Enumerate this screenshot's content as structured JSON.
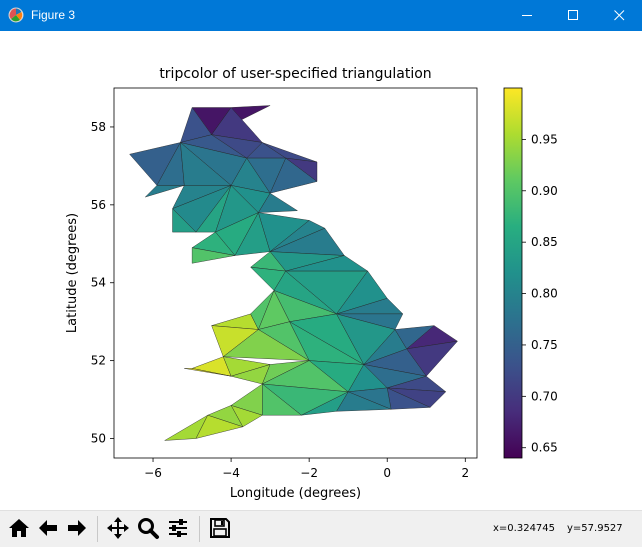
{
  "window": {
    "title": "Figure 3"
  },
  "toolbar": {
    "buttons": [
      "home-icon",
      "back-arrow-icon",
      "forward-arrow-icon",
      "pan-icon",
      "zoom-icon",
      "configure-subplots-icon",
      "save-icon"
    ],
    "coords": {
      "x": "x=0.324745",
      "y": "y=57.9527"
    }
  },
  "chart_data": {
    "type": "heatmap",
    "title": "tripcolor of user-specified triangulation",
    "xlabel": "Longitude (degrees)",
    "ylabel": "Latitude (degrees)",
    "xlim": [
      -7,
      2.3
    ],
    "ylim": [
      49.5,
      59
    ],
    "xticks": [
      -6,
      -4,
      -2,
      0,
      2
    ],
    "yticks": [
      50,
      52,
      54,
      56,
      58
    ],
    "colormap": "viridis",
    "colorbar": {
      "vmin": 0.64,
      "vmax": 1.0,
      "ticks": [
        0.65,
        0.7,
        0.75,
        0.8,
        0.85,
        0.9,
        0.95
      ]
    },
    "nodes": [
      [
        -5.0,
        58.5
      ],
      [
        -4.0,
        58.5
      ],
      [
        -3.0,
        58.55
      ],
      [
        -5.3,
        57.6
      ],
      [
        -4.5,
        57.8
      ],
      [
        -3.2,
        57.6
      ],
      [
        -3.6,
        57.2
      ],
      [
        -2.6,
        57.2
      ],
      [
        -1.8,
        57.1
      ],
      [
        -1.8,
        56.6
      ],
      [
        -6.6,
        57.3
      ],
      [
        -5.9,
        56.5
      ],
      [
        -6.2,
        56.2
      ],
      [
        -5.2,
        56.5
      ],
      [
        -4.0,
        56.5
      ],
      [
        -3.0,
        56.3
      ],
      [
        -2.3,
        55.85
      ],
      [
        -5.5,
        55.9
      ],
      [
        -5.5,
        55.3
      ],
      [
        -4.9,
        55.3
      ],
      [
        -4.4,
        55.3
      ],
      [
        -3.3,
        55.8
      ],
      [
        -2.0,
        55.6
      ],
      [
        -1.6,
        55.4
      ],
      [
        -5.0,
        54.9
      ],
      [
        -5.0,
        54.5
      ],
      [
        -3.9,
        54.7
      ],
      [
        -3.0,
        54.8
      ],
      [
        -1.1,
        54.7
      ],
      [
        -0.5,
        54.3
      ],
      [
        -3.5,
        54.4
      ],
      [
        -2.9,
        53.8
      ],
      [
        -1.3,
        53.2
      ],
      [
        0.0,
        53.6
      ],
      [
        0.4,
        53.2
      ],
      [
        0.2,
        52.8
      ],
      [
        -2.5,
        53.0
      ],
      [
        -4.5,
        52.9
      ],
      [
        -3.5,
        53.2
      ],
      [
        -4.2,
        52.1
      ],
      [
        -2.0,
        52.0
      ],
      [
        -0.6,
        51.9
      ],
      [
        0.5,
        52.3
      ],
      [
        1.2,
        52.9
      ],
      [
        1.8,
        52.5
      ],
      [
        1.0,
        51.6
      ],
      [
        -5.0,
        51.8
      ],
      [
        -4.0,
        51.6
      ],
      [
        -3.2,
        51.4
      ],
      [
        -3.0,
        51.9
      ],
      [
        -1.0,
        51.2
      ],
      [
        0.0,
        51.3
      ],
      [
        1.5,
        51.2
      ],
      [
        1.1,
        50.8
      ],
      [
        0.1,
        50.75
      ],
      [
        -1.3,
        50.7
      ],
      [
        -2.2,
        50.6
      ],
      [
        -3.2,
        50.6
      ],
      [
        -4.0,
        50.85
      ],
      [
        -4.6,
        50.6
      ],
      [
        -5.7,
        49.95
      ],
      [
        -4.9,
        50.0
      ],
      [
        -3.7,
        50.3
      ],
      [
        -5.2,
        51.8
      ],
      [
        -3.3,
        52.8
      ],
      [
        -0.7,
        54.2
      ],
      [
        -2.6,
        54.3
      ]
    ],
    "triangles": [
      [
        0,
        1,
        4,
        0.66
      ],
      [
        1,
        2,
        4,
        0.66
      ],
      [
        1,
        5,
        4,
        0.7
      ],
      [
        0,
        4,
        3,
        0.73
      ],
      [
        3,
        4,
        6,
        0.74
      ],
      [
        4,
        5,
        6,
        0.72
      ],
      [
        5,
        7,
        6,
        0.73
      ],
      [
        5,
        8,
        7,
        0.72
      ],
      [
        8,
        9,
        7,
        0.7
      ],
      [
        7,
        9,
        15,
        0.76
      ],
      [
        6,
        7,
        15,
        0.77
      ],
      [
        6,
        15,
        14,
        0.8
      ],
      [
        3,
        6,
        14,
        0.78
      ],
      [
        10,
        11,
        3,
        0.75
      ],
      [
        3,
        11,
        13,
        0.77
      ],
      [
        3,
        13,
        14,
        0.79
      ],
      [
        11,
        12,
        13,
        0.79
      ],
      [
        13,
        17,
        14,
        0.8
      ],
      [
        17,
        19,
        14,
        0.81
      ],
      [
        17,
        18,
        19,
        0.84
      ],
      [
        19,
        20,
        14,
        0.85
      ],
      [
        14,
        20,
        21,
        0.83
      ],
      [
        14,
        21,
        15,
        0.82
      ],
      [
        15,
        16,
        21,
        0.79
      ],
      [
        20,
        26,
        21,
        0.86
      ],
      [
        21,
        26,
        27,
        0.84
      ],
      [
        21,
        27,
        22,
        0.82
      ],
      [
        22,
        27,
        23,
        0.8
      ],
      [
        24,
        26,
        20,
        0.87
      ],
      [
        24,
        25,
        26,
        0.9
      ],
      [
        27,
        28,
        23,
        0.79
      ],
      [
        27,
        66,
        28,
        0.83
      ],
      [
        66,
        29,
        28,
        0.82
      ],
      [
        30,
        66,
        27,
        0.88
      ],
      [
        30,
        31,
        66,
        0.87
      ],
      [
        31,
        32,
        66,
        0.85
      ],
      [
        32,
        29,
        66,
        0.84
      ],
      [
        32,
        33,
        29,
        0.82
      ],
      [
        32,
        34,
        33,
        0.79
      ],
      [
        32,
        35,
        34,
        0.78
      ],
      [
        31,
        36,
        32,
        0.89
      ],
      [
        37,
        38,
        64,
        0.96
      ],
      [
        38,
        31,
        64,
        0.9
      ],
      [
        64,
        31,
        36,
        0.91
      ],
      [
        37,
        64,
        39,
        0.97
      ],
      [
        64,
        36,
        40,
        0.9
      ],
      [
        64,
        40,
        39,
        0.93
      ],
      [
        36,
        41,
        40,
        0.87
      ],
      [
        36,
        32,
        41,
        0.86
      ],
      [
        32,
        35,
        41,
        0.83
      ],
      [
        41,
        35,
        42,
        0.79
      ],
      [
        35,
        43,
        42,
        0.76
      ],
      [
        43,
        44,
        42,
        0.68
      ],
      [
        42,
        44,
        45,
        0.7
      ],
      [
        41,
        42,
        45,
        0.75
      ],
      [
        39,
        47,
        46,
        0.98
      ],
      [
        46,
        63,
        47,
        0.99
      ],
      [
        39,
        49,
        47,
        0.95
      ],
      [
        47,
        49,
        48,
        0.94
      ],
      [
        49,
        40,
        48,
        0.92
      ],
      [
        40,
        50,
        48,
        0.9
      ],
      [
        40,
        41,
        50,
        0.86
      ],
      [
        41,
        51,
        50,
        0.82
      ],
      [
        41,
        45,
        51,
        0.77
      ],
      [
        45,
        52,
        51,
        0.72
      ],
      [
        52,
        53,
        51,
        0.71
      ],
      [
        51,
        53,
        54,
        0.73
      ],
      [
        50,
        51,
        54,
        0.78
      ],
      [
        50,
        54,
        55,
        0.79
      ],
      [
        48,
        50,
        56,
        0.88
      ],
      [
        50,
        55,
        56,
        0.84
      ],
      [
        48,
        56,
        57,
        0.9
      ],
      [
        48,
        57,
        58,
        0.93
      ],
      [
        58,
        57,
        62,
        0.95
      ],
      [
        58,
        62,
        59,
        0.94
      ],
      [
        59,
        61,
        60,
        0.95
      ],
      [
        59,
        62,
        61,
        0.96
      ]
    ]
  }
}
